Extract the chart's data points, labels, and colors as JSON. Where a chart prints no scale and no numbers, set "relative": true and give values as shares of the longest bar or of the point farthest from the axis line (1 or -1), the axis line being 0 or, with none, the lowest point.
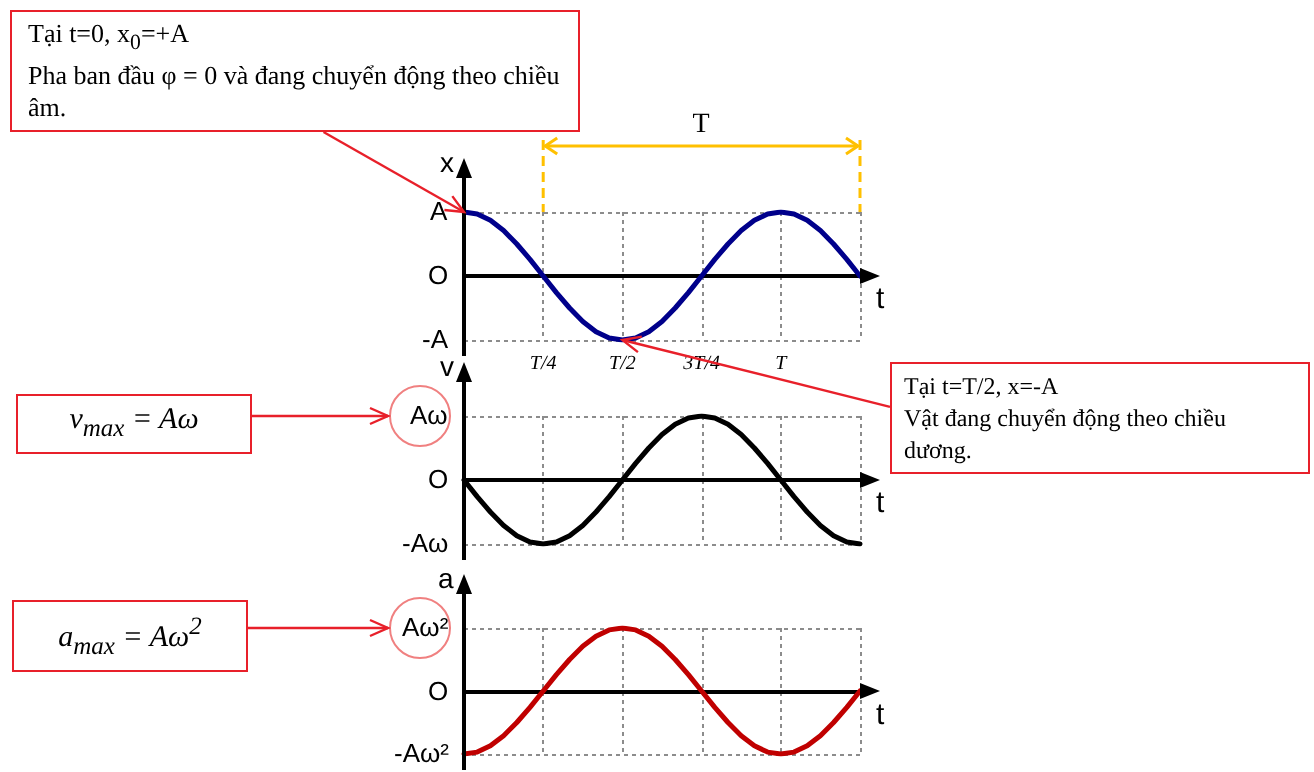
{
  "chart_data": [
    {
      "type": "line",
      "relative": true,
      "ylabel": "x",
      "xlabel": "t",
      "grid": true,
      "categories": [
        null,
        null,
        null,
        null,
        null,
        null,
        "T/4",
        null,
        null,
        null,
        null,
        null,
        "T/2",
        null,
        null,
        null,
        null,
        null,
        "3T/4",
        null,
        null,
        null,
        null,
        null,
        "T",
        null,
        null,
        null,
        null,
        null,
        null
      ],
      "series": [
        {
          "color": "#00008b",
          "values": [
            1,
            0.97,
            0.87,
            0.71,
            0.5,
            0.26,
            0,
            -0.26,
            -0.5,
            -0.71,
            -0.87,
            -0.97,
            -1,
            -0.97,
            -0.87,
            -0.71,
            -0.5,
            -0.26,
            0,
            0.26,
            0.5,
            0.71,
            0.87,
            0.97,
            1,
            0.97,
            0.87,
            0.71,
            0.5,
            0.26,
            0
          ]
        }
      ],
      "annotations": [
        "Tại t=0, x$_{0}$=+A\nPha ban đầu φ = 0 và đang chuyển động theo chiều âm.",
        {
          "text": "Tại t=T/2, x=-A\nVật đang chuyển động theo chiều dương.",
          "x": "T/2",
          "y": -1
        },
        "T",
        "O",
        "A",
        "-A"
      ]
    },
    {
      "type": "line",
      "relative": true,
      "ylabel": "v",
      "xlabel": "t",
      "grid": true,
      "categories": [
        null,
        null,
        null,
        null,
        null,
        null,
        null,
        null,
        null,
        null,
        null,
        null,
        null,
        null,
        null,
        null,
        null,
        null,
        null,
        null,
        null,
        null,
        null,
        null,
        null,
        null,
        null,
        null,
        null,
        null,
        null
      ],
      "series": [
        {
          "color": "#000000",
          "values": [
            0,
            -0.26,
            -0.5,
            -0.71,
            -0.87,
            -0.97,
            -1,
            -0.97,
            -0.87,
            -0.71,
            -0.5,
            -0.26,
            0,
            0.26,
            0.5,
            0.71,
            0.87,
            0.97,
            1,
            0.97,
            0.87,
            0.71,
            0.5,
            0.26,
            0,
            -0.26,
            -0.5,
            -0.71,
            -0.87,
            -0.97,
            -1
          ]
        }
      ],
      "annotations": [
        "v$_{max}$ = Aω",
        "O",
        "Aω",
        "-Aω"
      ]
    },
    {
      "type": "line",
      "relative": true,
      "ylabel": "a",
      "xlabel": "t",
      "grid": true,
      "categories": [
        null,
        null,
        null,
        null,
        null,
        null,
        null,
        null,
        null,
        null,
        null,
        null,
        null,
        null,
        null,
        null,
        null,
        null,
        null,
        null,
        null,
        null,
        null,
        null,
        null,
        null,
        null,
        null,
        null,
        null,
        null
      ],
      "series": [
        {
          "color": "#c00000",
          "values": [
            -1,
            -0.97,
            -0.87,
            -0.71,
            -0.5,
            -0.26,
            0,
            0.26,
            0.5,
            0.71,
            0.87,
            0.97,
            1,
            0.97,
            0.87,
            0.71,
            0.5,
            0.26,
            0,
            -0.26,
            -0.5,
            -0.71,
            -0.87,
            -0.97,
            -1,
            -0.97,
            -0.87,
            -0.71,
            -0.5,
            -0.26,
            0
          ]
        }
      ],
      "annotations": [
        "a$_{max}$ = Aω$^{2}$",
        "O",
        "Aω²",
        "-Aω²"
      ]
    }
  ]
}
